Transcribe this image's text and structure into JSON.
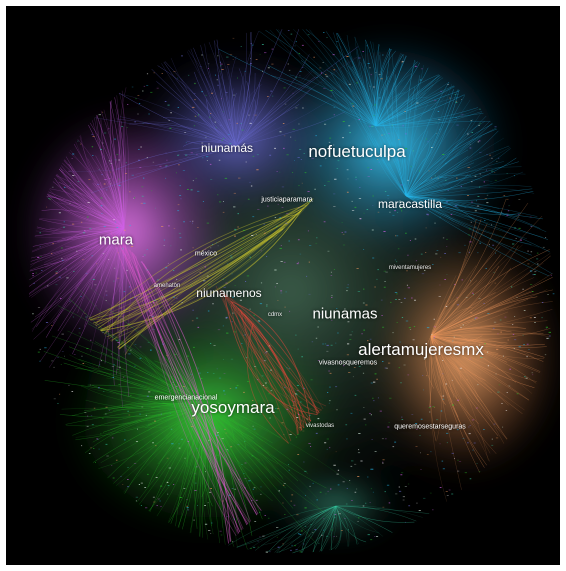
{
  "colors": {
    "background": "#000000",
    "frame": "#ffffff",
    "communities": {
      "purple": "#d060e6",
      "blue": "#6f6fdc",
      "cyan": "#26b6ea",
      "orange": "#f39a5f",
      "green": "#2ac22a",
      "teal": "#37c8a0",
      "yellow": "#c7c22e",
      "red": "#e0463a",
      "pink": "#e05ad0"
    }
  },
  "labels": {
    "nofuetuculpa": "nofuetuculpa",
    "alertamujeresmx": "alertamujeresmx",
    "yosoymara": "yosoymara",
    "mara": "mara",
    "niunamas": "niunamas",
    "maracastilla": "maracastilla",
    "niunamas_accent": "niunamás",
    "niunamenos": "niunamenos",
    "justiciaparamara": "justiciaparamara",
    "mexico": "méxico",
    "vivasnosqueremos": "vivasnosqueremos",
    "emergencianacional": "emergencianacional",
    "queremosestarseguras": "queremosestarseguras",
    "miventamujeres": "miventamujeres",
    "amenaton": "amenaton",
    "vivastodas": "vivastodas",
    "cdmx": "cdmx"
  }
}
